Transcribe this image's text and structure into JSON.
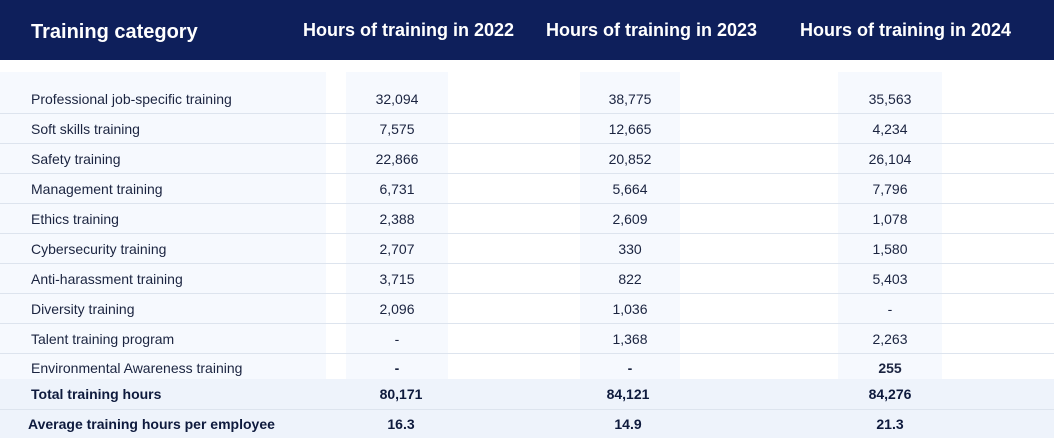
{
  "header": {
    "category": "Training category",
    "year_2022": "Hours of training in 2022",
    "year_2023": "Hours of training in 2023",
    "year_2024": "Hours of training in 2024"
  },
  "rows": [
    {
      "label": "Professional job-specific training",
      "v2022": "32,094",
      "v2023": "38,775",
      "v2024": "35,563"
    },
    {
      "label": "Soft skills training",
      "v2022": "7,575",
      "v2023": "12,665",
      "v2024": "4,234"
    },
    {
      "label": "Safety training",
      "v2022": "22,866",
      "v2023": "20,852",
      "v2024": "26,104"
    },
    {
      "label": "Management training",
      "v2022": "6,731",
      "v2023": "5,664",
      "v2024": "7,796"
    },
    {
      "label": "Ethics training",
      "v2022": "2,388",
      "v2023": "2,609",
      "v2024": "1,078"
    },
    {
      "label": "Cybersecurity training",
      "v2022": "2,707",
      "v2023": "330",
      "v2024": "1,580"
    },
    {
      "label": "Anti-harassment training",
      "v2022": "3,715",
      "v2023": "822",
      "v2024": "5,403"
    },
    {
      "label": "Diversity training",
      "v2022": "2,096",
      "v2023": "1,036",
      "v2024": "-"
    },
    {
      "label": "Talent training program",
      "v2022": "-",
      "v2023": "1,368",
      "v2024": "2,263"
    },
    {
      "label": "Environmental Awareness training",
      "v2022": "-",
      "v2023": "-",
      "v2024": "255"
    }
  ],
  "totals": {
    "label": "Total training hours",
    "v2022": "80,171",
    "v2023": "84,121",
    "v2024": "84,276"
  },
  "average": {
    "label": "Average training hours per employee",
    "v2022": "16.3",
    "v2023": "14.9",
    "v2024": "21.3"
  }
}
